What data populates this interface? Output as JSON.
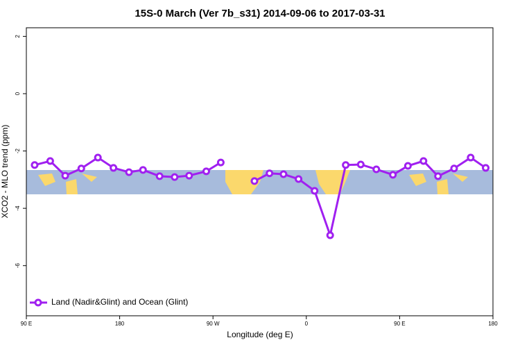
{
  "chart_data": {
    "type": "line",
    "title": "15S-0 March (Ver 7b_s31)   2014-09-06 to 2017-03-31",
    "x_label": "Longitude (deg E)",
    "y_label": "XCO2 - MLO trend (ppm)",
    "x": [
      -262,
      -247,
      -232.5,
      -217,
      -201,
      -186,
      -171,
      -157.5,
      -141.5,
      -127,
      -113,
      -96.5,
      -82.5,
      null,
      -50,
      -35.5,
      -22,
      -7.5,
      8,
      23,
      38,
      52.5,
      67.5,
      83.5,
      98,
      113,
      127,
      142.5,
      158.5,
      173
    ],
    "series": [
      {
        "name": "Land (Nadir&Glint) and Ocean (Glint)",
        "color": "#a020f0",
        "values": [
          -2.49,
          -2.35,
          -2.86,
          -2.61,
          -2.23,
          -2.59,
          -2.74,
          -2.66,
          -2.88,
          -2.91,
          -2.86,
          -2.71,
          -2.4,
          null,
          -3.05,
          -2.78,
          -2.81,
          -2.98,
          -3.39,
          -4.94,
          -2.49,
          -2.47,
          -2.64,
          -2.83,
          -2.52,
          -2.35,
          -2.88,
          -2.61,
          -2.23,
          -2.59
        ]
      }
    ],
    "xlim": [
      -270,
      180
    ],
    "xticks": [
      {
        "value": -270,
        "label": "90 E"
      },
      {
        "value": -180,
        "label": "180"
      },
      {
        "value": -90,
        "label": "90 W"
      },
      0,
      {
        "value": 90,
        "label": "90 E"
      },
      180
    ],
    "ylim": [
      -7.75,
      2.3
    ],
    "yticks": [
      2,
      0,
      -2,
      -4,
      -6
    ],
    "legend": "bottom-left"
  }
}
